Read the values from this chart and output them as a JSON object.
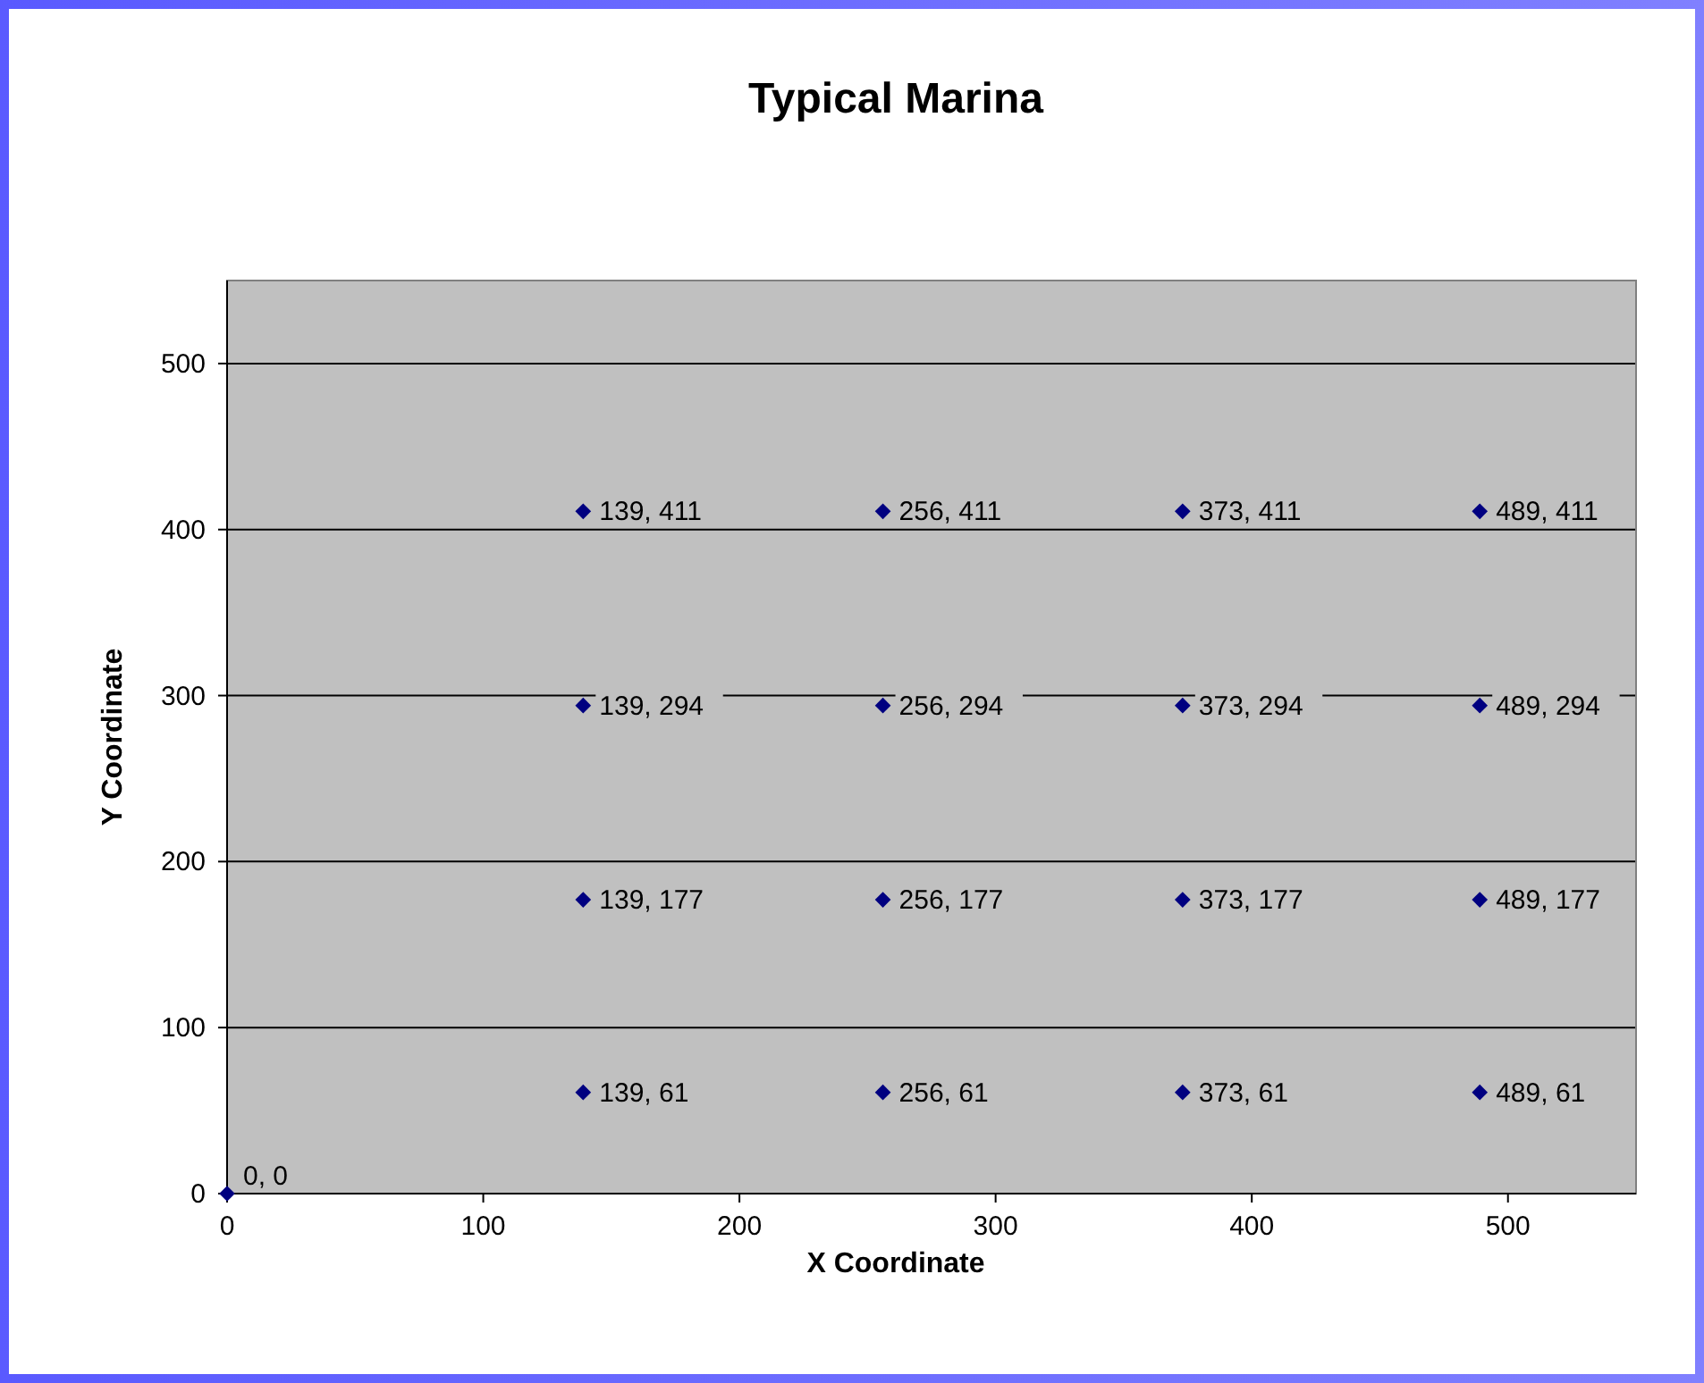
{
  "chart_data": {
    "type": "scatter",
    "title": "Typical Marina",
    "xlabel": "X Coordinate",
    "ylabel": "Y Coordinate",
    "x": [
      0,
      139,
      256,
      373,
      489,
      139,
      256,
      373,
      489,
      139,
      256,
      373,
      489,
      139,
      256,
      373,
      489
    ],
    "series": [
      {
        "color": "#000080",
        "values": [
          0,
          411,
          411,
          411,
          411,
          294,
          294,
          294,
          294,
          177,
          177,
          177,
          177,
          61,
          61,
          61,
          61
        ],
        "value_labels": [
          "0, 0",
          "139, 411",
          "256, 411",
          "373, 411",
          "489, 411",
          "139, 294",
          "256, 294",
          "373, 294",
          "489, 294",
          "139, 177",
          "256, 177",
          "373, 177",
          "489, 177",
          "139, 61",
          "256, 61",
          "373, 61",
          "489, 61"
        ]
      }
    ],
    "xlim": [
      0,
      550
    ],
    "ylim": [
      0,
      550
    ],
    "xticks": [
      0,
      100,
      200,
      300,
      400,
      500
    ],
    "yticks": [
      0,
      100,
      200,
      300,
      400,
      500
    ],
    "grid": "y",
    "marker": "diamond"
  }
}
